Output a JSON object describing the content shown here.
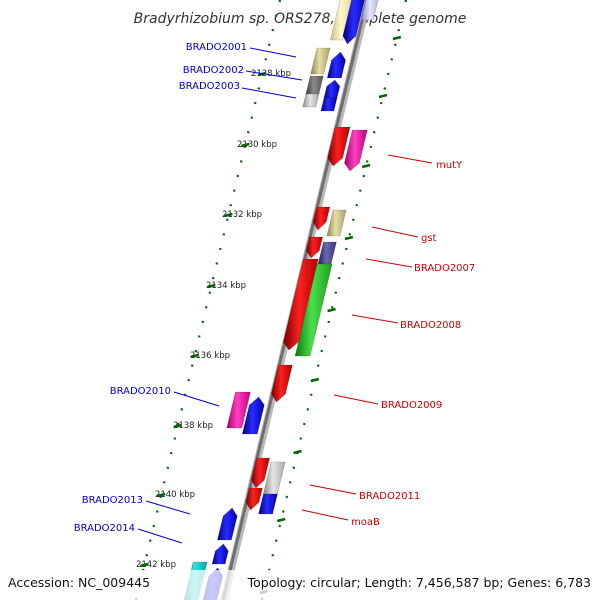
{
  "title": "Bradyrhizobium sp. ORS278, complete genome",
  "footer": {
    "accession": "Accession: NC_009445",
    "summary": "Topology: circular; Length: 7,456,587 bp; Genes: 6,783"
  },
  "chart_data": {
    "type": "genome-map",
    "kbp_ticks": [
      "2128 kbp",
      "2130 kbp",
      "2132 kbp",
      "2134 kbp",
      "2136 kbp",
      "2138 kbp",
      "2140 kbp",
      "2142 kbp"
    ],
    "gene_labels": [
      {
        "text": "BRADO2001",
        "strand": "forward"
      },
      {
        "text": "BRADO2002",
        "strand": "forward"
      },
      {
        "text": "BRADO2003",
        "strand": "forward"
      },
      {
        "text": "mutY",
        "strand": "reverse"
      },
      {
        "text": "gst",
        "strand": "reverse"
      },
      {
        "text": "BRADO2007",
        "strand": "reverse"
      },
      {
        "text": "BRADO2008",
        "strand": "reverse"
      },
      {
        "text": "BRADO2009",
        "strand": "reverse"
      },
      {
        "text": "BRADO2010",
        "strand": "forward"
      },
      {
        "text": "BRADO2011",
        "strand": "reverse"
      },
      {
        "text": "moaB",
        "strand": "reverse"
      },
      {
        "text": "BRADO2013",
        "strand": "forward"
      },
      {
        "text": "BRADO2014",
        "strand": "forward"
      }
    ],
    "colors": {
      "forward_label": "#0000cc",
      "reverse_label": "#cc0000",
      "tick": "#006600",
      "backbone": "#888888"
    }
  }
}
